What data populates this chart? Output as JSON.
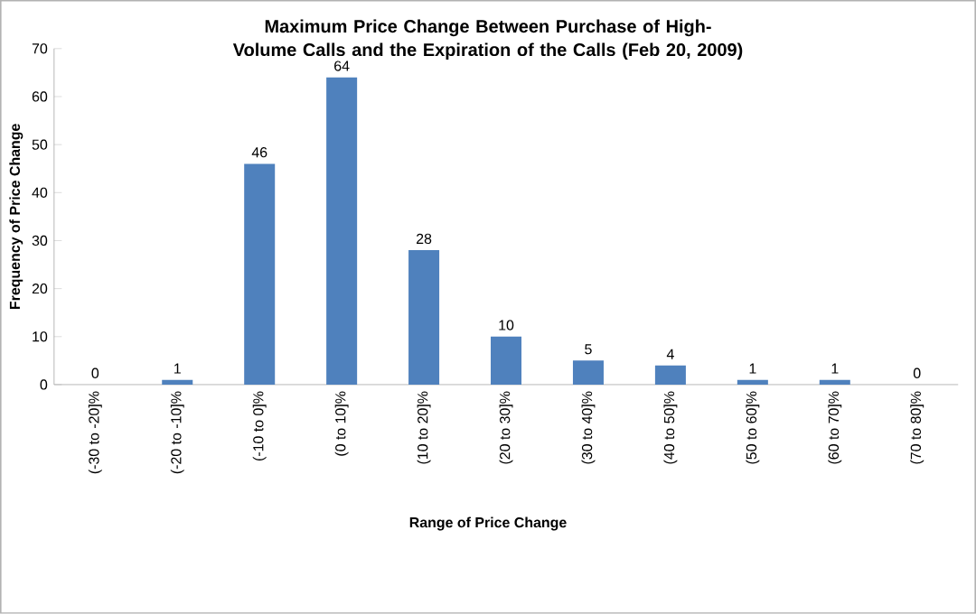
{
  "chart_data": {
    "type": "bar",
    "title": "Maximum Price Change Between Purchase of High-Volume Calls and the Expiration of the Calls (Feb 20, 2009)",
    "xlabel": "Range of Price Change",
    "ylabel": "Frequency of Price Change",
    "categories": [
      "(-30 to -20]%",
      "(-20 to -10]%",
      "(-10 to 0]%",
      "(0 to 10]%",
      "(10 to 20]%",
      "(20 to 30]%",
      "(30 to 40]%",
      "(40 to 50]%",
      "(50 to 60]%",
      "(60 to 70]%",
      "(70 to 80]%"
    ],
    "values": [
      0,
      1,
      46,
      64,
      28,
      10,
      5,
      4,
      1,
      1,
      0
    ],
    "color": "#4f81bd",
    "ylim": [
      0,
      70
    ],
    "yticks": [
      0,
      10,
      20,
      30,
      40,
      50,
      60,
      70
    ],
    "data_labels": true,
    "grid": false
  }
}
